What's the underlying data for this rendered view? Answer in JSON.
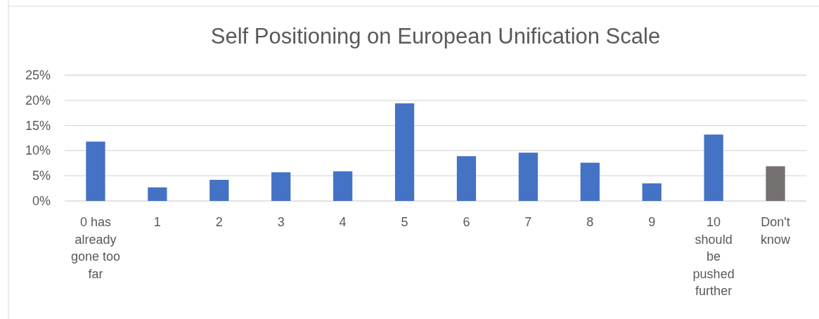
{
  "chart_data": {
    "type": "bar",
    "title": "Self Positioning on European Unification Scale",
    "categories": [
      "0 has already gone too far",
      "1",
      "2",
      "3",
      "4",
      "5",
      "6",
      "7",
      "8",
      "9",
      "10 should be pushed further",
      "Don't know"
    ],
    "values": [
      11.8,
      2.7,
      4.2,
      5.7,
      5.9,
      19.4,
      8.9,
      9.6,
      7.6,
      3.5,
      13.2,
      6.9
    ],
    "colors": [
      "#4472c4",
      "#4472c4",
      "#4472c4",
      "#4472c4",
      "#4472c4",
      "#4472c4",
      "#4472c4",
      "#4472c4",
      "#4472c4",
      "#4472c4",
      "#4472c4",
      "#767171"
    ],
    "ylim": [
      0,
      25
    ],
    "yticks": [
      {
        "value": 0,
        "label": "0%"
      },
      {
        "value": 5,
        "label": "5%"
      },
      {
        "value": 10,
        "label": "10%"
      },
      {
        "value": 15,
        "label": "15%"
      },
      {
        "value": 20,
        "label": "20%"
      },
      {
        "value": 25,
        "label": "25%"
      }
    ],
    "grid": "y"
  }
}
